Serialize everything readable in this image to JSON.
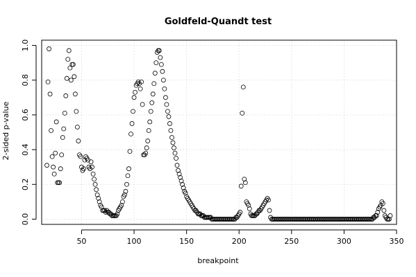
{
  "chart_data": {
    "type": "scatter",
    "title": "Goldfeld-Quandt test",
    "xlabel": "breakpoint",
    "ylabel": "2-sided p-value",
    "xlim": [
      12,
      350
    ],
    "ylim": [
      -0.03,
      1.03
    ],
    "xticks": [
      50,
      100,
      150,
      200,
      250,
      300,
      350
    ],
    "yticks": [
      0.0,
      0.2,
      0.4,
      0.6,
      0.8,
      1.0
    ],
    "xtick_labels": [
      "50",
      "100",
      "150",
      "200",
      "250",
      "300",
      "350"
    ],
    "ytick_labels": [
      "0.0",
      "0.2",
      "0.4",
      "0.6",
      "0.8",
      "1.0"
    ],
    "grid": true,
    "marker": "open-circle",
    "series": [
      {
        "x": [
          17,
          18,
          19,
          20,
          21,
          22,
          23,
          24,
          25,
          26,
          27,
          28,
          29,
          30,
          31,
          32,
          33,
          34,
          35,
          36,
          37,
          38,
          39,
          40,
          41,
          42,
          43,
          44,
          45,
          46,
          47,
          48,
          49,
          50,
          51,
          52,
          53,
          54,
          55,
          56,
          57,
          58,
          59,
          60,
          61,
          62,
          63,
          64,
          65,
          66,
          67,
          68,
          69,
          70,
          71,
          72,
          73,
          74,
          75,
          76,
          77,
          78,
          79,
          80,
          81,
          82,
          83,
          84,
          85,
          86,
          87,
          88,
          89,
          90,
          91,
          92,
          93,
          94,
          95,
          96,
          97,
          98,
          99,
          100,
          101,
          102,
          103,
          104,
          105,
          106,
          107,
          108,
          109,
          110,
          111,
          112,
          113,
          114,
          115,
          116,
          117,
          118,
          119,
          120,
          121,
          122,
          123,
          124,
          125,
          126,
          127,
          128,
          129,
          130,
          131,
          132,
          133,
          134,
          135,
          136,
          137,
          138,
          139,
          140,
          141,
          142,
          143,
          144,
          145,
          146,
          147,
          148,
          149,
          150,
          151,
          152,
          153,
          154,
          155,
          156,
          157,
          158,
          159,
          160,
          161,
          162,
          163,
          164,
          165,
          166,
          167,
          168,
          169,
          170,
          171,
          172,
          173,
          174,
          175,
          176,
          177,
          178,
          179,
          180,
          181,
          182,
          183,
          184,
          185,
          186,
          187,
          188,
          189,
          190,
          191,
          192,
          193,
          194,
          195,
          196,
          197,
          198,
          199,
          200,
          201,
          202,
          203,
          204,
          205,
          206,
          207,
          208,
          209,
          210,
          211,
          212,
          213,
          214,
          215,
          216,
          217,
          218,
          219,
          220,
          221,
          222,
          223,
          224,
          225,
          226,
          227,
          228,
          229,
          230,
          231,
          232,
          233,
          234,
          235,
          236,
          237,
          238,
          239,
          240,
          241,
          242,
          243,
          244,
          245,
          246,
          247,
          248,
          249,
          250,
          251,
          252,
          253,
          254,
          255,
          256,
          257,
          258,
          259,
          260,
          261,
          262,
          263,
          264,
          265,
          266,
          267,
          268,
          269,
          270,
          271,
          272,
          273,
          274,
          275,
          276,
          277,
          278,
          279,
          280,
          281,
          282,
          283,
          284,
          285,
          286,
          287,
          288,
          289,
          290,
          291,
          292,
          293,
          294,
          295,
          296,
          297,
          298,
          299,
          300,
          301,
          302,
          303,
          304,
          305,
          306,
          307,
          308,
          309,
          310,
          311,
          312,
          313,
          314,
          315,
          316,
          317,
          318,
          319,
          320,
          321,
          322,
          323,
          324,
          325,
          326,
          327,
          328,
          329,
          330,
          331,
          332,
          333,
          334,
          335,
          336,
          337,
          338,
          339,
          340,
          341,
          342,
          343,
          344
        ],
        "y": [
          0.31,
          0.79,
          0.98,
          0.72,
          0.51,
          0.36,
          0.3,
          0.26,
          0.38,
          0.56,
          0.21,
          0.21,
          0.21,
          0.29,
          0.37,
          0.47,
          0.52,
          0.61,
          0.71,
          0.81,
          0.92,
          0.97,
          0.87,
          0.8,
          0.89,
          0.89,
          0.82,
          0.72,
          0.62,
          0.53,
          0.45,
          0.37,
          0.36,
          0.3,
          0.28,
          0.29,
          0.34,
          0.36,
          0.35,
          0.34,
          0.3,
          0.29,
          0.33,
          0.3,
          0.26,
          0.23,
          0.2,
          0.17,
          0.14,
          0.12,
          0.1,
          0.08,
          0.07,
          0.05,
          0.05,
          0.05,
          0.04,
          0.05,
          0.04,
          0.04,
          0.03,
          0.03,
          0.02,
          0.02,
          0.02,
          0.02,
          0.02,
          0.03,
          0.05,
          0.06,
          0.07,
          0.08,
          0.1,
          0.13,
          0.14,
          0.16,
          0.2,
          0.25,
          0.29,
          0.39,
          0.49,
          0.55,
          0.62,
          0.7,
          0.73,
          0.77,
          0.78,
          0.79,
          0.78,
          0.75,
          0.79,
          0.66,
          0.37,
          0.37,
          0.38,
          0.41,
          0.45,
          0.51,
          0.56,
          0.62,
          0.67,
          0.72,
          0.78,
          0.84,
          0.9,
          0.96,
          0.97,
          0.97,
          0.93,
          0.89,
          0.85,
          0.8,
          0.75,
          0.7,
          0.66,
          0.62,
          0.59,
          0.55,
          0.51,
          0.47,
          0.44,
          0.41,
          0.38,
          0.35,
          0.31,
          0.28,
          0.26,
          0.24,
          0.22,
          0.2,
          0.18,
          0.16,
          0.15,
          0.13,
          0.12,
          0.11,
          0.1,
          0.09,
          0.08,
          0.07,
          0.06,
          0.05,
          0.05,
          0.04,
          0.03,
          0.03,
          0.03,
          0.02,
          0.02,
          0.02,
          0.01,
          0.01,
          0.01,
          0.01,
          0.01,
          0.01,
          0.01,
          0.0,
          0.0,
          0.0,
          0.0,
          0.0,
          0.0,
          0.0,
          0.0,
          0.0,
          0.0,
          0.0,
          0.0,
          0.0,
          0.0,
          0.0,
          0.0,
          0.0,
          0.0,
          0.0,
          0.0,
          0.0,
          0.0,
          0.0,
          0.01,
          0.01,
          0.02,
          0.03,
          0.04,
          0.19,
          0.61,
          0.76,
          0.23,
          0.21,
          0.1,
          0.09,
          0.08,
          0.06,
          0.03,
          0.02,
          0.02,
          0.02,
          0.02,
          0.03,
          0.03,
          0.04,
          0.05,
          0.05,
          0.06,
          0.07,
          0.08,
          0.09,
          0.1,
          0.11,
          0.12,
          0.11,
          0.05,
          0.01,
          0.0,
          0.0,
          0.0,
          0.0,
          0.0,
          0.0,
          0.0,
          0.0,
          0.0,
          0.0,
          0.0,
          0.0,
          0.0,
          0.0,
          0.0,
          0.0,
          0.0,
          0.0,
          0.0,
          0.0,
          0.0,
          0.0,
          0.0,
          0.0,
          0.0,
          0.0,
          0.0,
          0.0,
          0.0,
          0.0,
          0.0,
          0.0,
          0.0,
          0.0,
          0.0,
          0.0,
          0.0,
          0.0,
          0.0,
          0.0,
          0.0,
          0.0,
          0.0,
          0.0,
          0.0,
          0.0,
          0.0,
          0.0,
          0.0,
          0.0,
          0.0,
          0.0,
          0.0,
          0.0,
          0.0,
          0.0,
          0.0,
          0.0,
          0.0,
          0.0,
          0.0,
          0.0,
          0.0,
          0.0,
          0.0,
          0.0,
          0.0,
          0.0,
          0.0,
          0.0,
          0.0,
          0.0,
          0.0,
          0.0,
          0.0,
          0.0,
          0.0,
          0.0,
          0.0,
          0.0,
          0.0,
          0.0,
          0.0,
          0.0,
          0.0,
          0.0,
          0.0,
          0.0,
          0.0,
          0.0,
          0.0,
          0.0,
          0.0,
          0.0,
          0.0,
          0.0,
          0.0,
          0.01,
          0.01,
          0.02,
          0.02,
          0.04,
          0.06,
          0.07,
          0.08,
          0.1,
          0.09,
          0.05,
          0.02,
          0.01,
          0.0,
          0.0,
          0.0,
          0.02
        ]
      }
    ]
  }
}
